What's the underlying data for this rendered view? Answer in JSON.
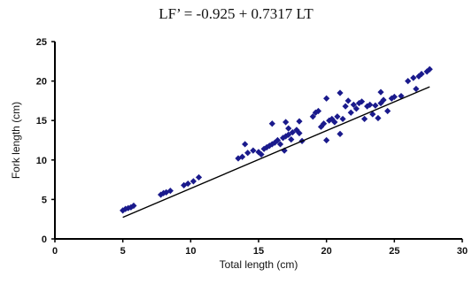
{
  "chart_data": {
    "type": "scatter",
    "title": "LF’ = -0.925 + 0.7317 LT",
    "xlabel": "Total length (cm)",
    "ylabel": "Fork length (cm)",
    "xlim": [
      0,
      30
    ],
    "ylim": [
      0,
      25
    ],
    "xticks": [
      0,
      5,
      10,
      15,
      20,
      25,
      30
    ],
    "yticks": [
      0,
      5,
      10,
      15,
      20,
      25
    ],
    "grid": false,
    "legend": "none",
    "marker_color": "#1a1a8c",
    "line_color": "#000000",
    "trendline": {
      "intercept": -0.925,
      "slope": 0.7317
    },
    "points": [
      [
        5.0,
        3.6
      ],
      [
        5.2,
        3.8
      ],
      [
        5.4,
        3.9
      ],
      [
        5.6,
        4.0
      ],
      [
        5.8,
        4.2
      ],
      [
        7.8,
        5.6
      ],
      [
        8.0,
        5.8
      ],
      [
        8.2,
        5.9
      ],
      [
        8.5,
        6.1
      ],
      [
        9.5,
        6.8
      ],
      [
        9.8,
        7.0
      ],
      [
        10.2,
        7.3
      ],
      [
        10.6,
        7.8
      ],
      [
        13.5,
        10.2
      ],
      [
        13.8,
        10.4
      ],
      [
        14.0,
        12.0
      ],
      [
        14.2,
        10.9
      ],
      [
        14.6,
        11.2
      ],
      [
        15.0,
        11.0
      ],
      [
        15.2,
        10.7
      ],
      [
        15.4,
        11.4
      ],
      [
        15.6,
        11.6
      ],
      [
        15.8,
        11.8
      ],
      [
        16.0,
        12.0
      ],
      [
        16.0,
        14.6
      ],
      [
        16.2,
        12.2
      ],
      [
        16.4,
        12.5
      ],
      [
        16.6,
        12.0
      ],
      [
        16.8,
        12.8
      ],
      [
        16.9,
        11.2
      ],
      [
        17.0,
        13.0
      ],
      [
        17.0,
        14.8
      ],
      [
        17.2,
        13.2
      ],
      [
        17.2,
        14.0
      ],
      [
        17.4,
        12.6
      ],
      [
        17.5,
        13.5
      ],
      [
        17.8,
        13.8
      ],
      [
        18.0,
        13.4
      ],
      [
        18.0,
        14.9
      ],
      [
        18.2,
        12.4
      ],
      [
        19.0,
        15.5
      ],
      [
        19.2,
        16.0
      ],
      [
        19.4,
        16.2
      ],
      [
        19.6,
        14.2
      ],
      [
        19.8,
        14.6
      ],
      [
        20.0,
        12.5
      ],
      [
        20.0,
        17.8
      ],
      [
        20.2,
        15.0
      ],
      [
        20.4,
        15.2
      ],
      [
        20.6,
        14.8
      ],
      [
        20.8,
        15.5
      ],
      [
        21.0,
        18.5
      ],
      [
        21.0,
        13.3
      ],
      [
        21.2,
        15.2
      ],
      [
        21.4,
        16.8
      ],
      [
        21.6,
        17.5
      ],
      [
        21.8,
        16.0
      ],
      [
        22.0,
        17.0
      ],
      [
        22.2,
        16.5
      ],
      [
        22.4,
        17.2
      ],
      [
        22.6,
        17.4
      ],
      [
        22.8,
        15.2
      ],
      [
        23.0,
        16.8
      ],
      [
        23.2,
        17.0
      ],
      [
        23.4,
        15.8
      ],
      [
        23.6,
        16.9
      ],
      [
        23.8,
        15.3
      ],
      [
        24.0,
        17.2
      ],
      [
        24.0,
        18.6
      ],
      [
        24.2,
        17.6
      ],
      [
        24.5,
        16.2
      ],
      [
        24.8,
        17.8
      ],
      [
        25.0,
        18.0
      ],
      [
        25.5,
        18.1
      ],
      [
        26.0,
        20.0
      ],
      [
        26.4,
        20.4
      ],
      [
        26.6,
        19.0
      ],
      [
        26.8,
        20.6
      ],
      [
        27.0,
        20.9
      ],
      [
        27.4,
        21.2
      ],
      [
        27.6,
        21.5
      ]
    ]
  }
}
